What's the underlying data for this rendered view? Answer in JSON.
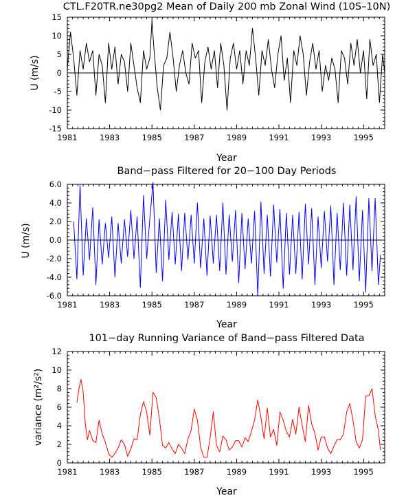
{
  "chart_data": [
    {
      "type": "line",
      "title": "CTL.F20TR.ne30pg2 Mean of Daily 200 mb Zonal Wind (10S–10N)",
      "xlabel": "Year",
      "ylabel": "U (m/s)",
      "xlim": [
        1981,
        1996
      ],
      "ylim": [
        -15,
        15
      ],
      "xticks": [
        "1981",
        "1983",
        "1985",
        "1987",
        "1989",
        "1991",
        "1993",
        "1995"
      ],
      "yticks": [
        "-15",
        "-10",
        "-5",
        "0",
        "5",
        "10",
        "15"
      ],
      "zero_line": true,
      "grid": false,
      "series": [
        {
          "color": "#000000",
          "x": [
            1981.0,
            1981.15,
            1981.3,
            1981.45,
            1981.6,
            1981.75,
            1981.9,
            1982.05,
            1982.2,
            1982.35,
            1982.5,
            1982.65,
            1982.8,
            1982.95,
            1983.1,
            1983.25,
            1983.4,
            1983.55,
            1983.7,
            1983.85,
            1984.0,
            1984.15,
            1984.3,
            1984.45,
            1984.6,
            1984.75,
            1984.9,
            1985.0,
            1985.1,
            1985.25,
            1985.4,
            1985.55,
            1985.7,
            1985.85,
            1986.0,
            1986.15,
            1986.3,
            1986.45,
            1986.6,
            1986.75,
            1986.9,
            1987.05,
            1987.2,
            1987.35,
            1987.5,
            1987.65,
            1987.8,
            1987.95,
            1988.1,
            1988.25,
            1988.4,
            1988.55,
            1988.7,
            1988.85,
            1989.0,
            1989.15,
            1989.3,
            1989.45,
            1989.6,
            1989.75,
            1989.9,
            1990.05,
            1990.2,
            1990.35,
            1990.5,
            1990.65,
            1990.8,
            1990.95,
            1991.1,
            1991.25,
            1991.4,
            1991.55,
            1991.7,
            1991.85,
            1992.0,
            1992.15,
            1992.3,
            1992.45,
            1992.6,
            1992.75,
            1992.9,
            1993.05,
            1993.2,
            1993.35,
            1993.5,
            1993.65,
            1993.8,
            1993.95,
            1994.1,
            1994.25,
            1994.4,
            1994.55,
            1994.7,
            1994.85,
            1995.0,
            1995.15,
            1995.3,
            1995.45,
            1995.6,
            1995.75,
            1995.9,
            1996.0
          ],
          "values": [
            1,
            11,
            4,
            -6,
            6,
            1,
            8,
            3,
            6,
            -6,
            5,
            2,
            -8,
            8,
            1,
            7,
            -3,
            5,
            3,
            -5,
            8,
            2,
            -4,
            -8,
            6,
            1,
            4,
            14,
            6,
            -4,
            -10,
            2,
            4,
            11,
            4,
            -5,
            2,
            6,
            0,
            -3,
            8,
            4,
            6,
            -8,
            3,
            7,
            1,
            6,
            -4,
            8,
            2,
            -10,
            4,
            8,
            1,
            6,
            -3,
            6,
            2,
            12,
            4,
            -6,
            6,
            2,
            9,
            1,
            -4,
            5,
            10,
            -2,
            4,
            -8,
            6,
            2,
            10,
            5,
            -6,
            3,
            8,
            1,
            6,
            -5,
            2,
            -2,
            4,
            1,
            -8,
            6,
            4,
            -3,
            8,
            2,
            9,
            0,
            6,
            -7,
            9,
            2,
            5,
            -8,
            5,
            0
          ]
        }
      ]
    },
    {
      "type": "line",
      "title": "Band−pass Filtered for 20−100 Day Periods",
      "xlabel": "Year",
      "ylabel": "U (m/s)",
      "xlim": [
        1981,
        1996
      ],
      "ylim": [
        -6,
        6
      ],
      "xticks": [
        "1981",
        "1983",
        "1985",
        "1987",
        "1989",
        "1991",
        "1993",
        "1995"
      ],
      "yticks": [
        "-6.0",
        "-4.0",
        "-2.0",
        "0.0",
        "2.0",
        "4.0",
        "6.0"
      ],
      "zero_line": true,
      "grid": false,
      "series": [
        {
          "color": "#0000ff",
          "x": [
            1981.3,
            1981.45,
            1981.6,
            1981.75,
            1981.9,
            1982.05,
            1982.2,
            1982.35,
            1982.5,
            1982.65,
            1982.8,
            1982.95,
            1983.1,
            1983.25,
            1983.4,
            1983.55,
            1983.7,
            1983.85,
            1984.0,
            1984.15,
            1984.3,
            1984.45,
            1984.6,
            1984.75,
            1984.9,
            1985.05,
            1985.2,
            1985.35,
            1985.5,
            1985.65,
            1985.8,
            1985.95,
            1986.1,
            1986.25,
            1986.4,
            1986.55,
            1986.7,
            1986.85,
            1987.0,
            1987.15,
            1987.3,
            1987.45,
            1987.6,
            1987.75,
            1987.9,
            1988.05,
            1988.2,
            1988.35,
            1988.5,
            1988.65,
            1988.8,
            1988.95,
            1989.1,
            1989.25,
            1989.4,
            1989.55,
            1989.7,
            1989.85,
            1990.0,
            1990.15,
            1990.3,
            1990.45,
            1990.6,
            1990.75,
            1990.9,
            1991.05,
            1991.2,
            1991.35,
            1991.5,
            1991.65,
            1991.8,
            1991.95,
            1992.1,
            1992.25,
            1992.4,
            1992.55,
            1992.7,
            1992.85,
            1993.0,
            1993.15,
            1993.3,
            1993.45,
            1993.6,
            1993.75,
            1993.9,
            1994.05,
            1994.2,
            1994.35,
            1994.5,
            1994.65,
            1994.8,
            1994.95,
            1995.1,
            1995.25,
            1995.4,
            1995.55,
            1995.7,
            1995.8
          ],
          "values": [
            2,
            -4.2,
            5.9,
            -3.8,
            2.3,
            -2.1,
            3.5,
            -4.8,
            2.2,
            -2.6,
            1.8,
            -1.9,
            2.5,
            -4.0,
            1.8,
            -2.5,
            2.2,
            -1.8,
            3.2,
            -2.0,
            2.5,
            -5.1,
            4.8,
            -2.0,
            2.3,
            6.2,
            -3.5,
            2.3,
            -4.4,
            4.3,
            -2.1,
            3.0,
            -2.6,
            2.8,
            -3.3,
            2.9,
            -2.1,
            2.7,
            -2.5,
            4.0,
            -3.0,
            2.3,
            -3.8,
            2.6,
            -2.5,
            2.7,
            -3.3,
            4.0,
            -3.7,
            2.7,
            -2.3,
            3.2,
            -4.6,
            2.9,
            -3.1,
            2.3,
            -2.5,
            3.1,
            -6.0,
            4.1,
            -3.6,
            2.7,
            -3.9,
            3.8,
            -2.4,
            3.3,
            -5.2,
            2.9,
            -3.7,
            2.7,
            -3.6,
            3.0,
            -4.2,
            3.9,
            -2.6,
            3.4,
            -4.8,
            2.5,
            -3.0,
            3.1,
            -2.3,
            3.7,
            -4.8,
            2.9,
            -3.2,
            4.0,
            -3.8,
            3.8,
            -3.2,
            4.7,
            -4.4,
            3.2,
            -5.6,
            4.5,
            -3.3,
            4.5,
            -4.8,
            -1.6
          ]
        }
      ]
    },
    {
      "type": "line",
      "title": "101−day Running Variance of Band−pass Filtered Data",
      "xlabel": "Year",
      "ylabel": "variance (m²/s²)",
      "xlim": [
        1981,
        1996
      ],
      "ylim": [
        0,
        12
      ],
      "xticks": [
        "1981",
        "1983",
        "1985",
        "1987",
        "1989",
        "1991",
        "1993",
        "1995"
      ],
      "yticks": [
        "0",
        "2",
        "4",
        "6",
        "8",
        "10",
        "12"
      ],
      "zero_line": false,
      "grid": false,
      "series": [
        {
          "color": "#ff0000",
          "x": [
            1981.45,
            1981.55,
            1981.65,
            1981.75,
            1981.85,
            1981.95,
            1982.05,
            1982.2,
            1982.35,
            1982.5,
            1982.65,
            1982.8,
            1982.95,
            1983.1,
            1983.25,
            1983.4,
            1983.55,
            1983.7,
            1983.85,
            1984.0,
            1984.15,
            1984.3,
            1984.45,
            1984.6,
            1984.75,
            1984.9,
            1985.05,
            1985.2,
            1985.35,
            1985.5,
            1985.65,
            1985.8,
            1985.95,
            1986.1,
            1986.25,
            1986.4,
            1986.55,
            1986.7,
            1986.85,
            1987.0,
            1987.15,
            1987.3,
            1987.45,
            1987.6,
            1987.75,
            1987.9,
            1988.05,
            1988.2,
            1988.35,
            1988.5,
            1988.65,
            1988.8,
            1988.95,
            1989.1,
            1989.25,
            1989.4,
            1989.55,
            1989.7,
            1989.85,
            1990.0,
            1990.15,
            1990.3,
            1990.45,
            1990.6,
            1990.75,
            1990.9,
            1991.05,
            1991.2,
            1991.35,
            1991.5,
            1991.65,
            1991.8,
            1991.95,
            1992.1,
            1992.25,
            1992.4,
            1992.55,
            1992.7,
            1992.85,
            1993.0,
            1993.15,
            1993.3,
            1993.45,
            1993.6,
            1993.75,
            1993.9,
            1994.05,
            1994.2,
            1994.35,
            1994.5,
            1994.65,
            1994.8,
            1994.95,
            1995.1,
            1995.25,
            1995.4,
            1995.55,
            1995.7,
            1995.8
          ],
          "values": [
            6.5,
            8.0,
            9.0,
            7.6,
            4.2,
            2.5,
            3.5,
            2.4,
            2.2,
            4.6,
            3.1,
            2.2,
            1.0,
            0.6,
            1.0,
            1.6,
            2.5,
            2.0,
            0.7,
            1.5,
            2.6,
            2.5,
            5.2,
            6.6,
            5.5,
            3.0,
            7.6,
            7.0,
            4.8,
            1.9,
            1.6,
            2.2,
            1.5,
            1.0,
            2.0,
            1.6,
            1.0,
            2.6,
            3.5,
            5.8,
            4.6,
            1.7,
            0.6,
            0.6,
            2.7,
            5.5,
            1.9,
            1.2,
            2.9,
            2.5,
            1.4,
            1.7,
            2.4,
            2.4,
            1.7,
            2.7,
            2.3,
            3.4,
            4.6,
            6.8,
            4.9,
            2.6,
            5.9,
            2.8,
            3.6,
            1.9,
            5.5,
            4.6,
            3.4,
            2.8,
            4.7,
            3.1,
            6.0,
            4.0,
            2.3,
            6.2,
            4.2,
            3.2,
            1.4,
            2.8,
            2.8,
            1.6,
            1.0,
            1.8,
            2.5,
            2.5,
            3.1,
            5.5,
            6.4,
            4.6,
            2.3,
            1.6,
            2.5,
            7.2,
            7.2,
            8.0,
            5.1,
            3.5,
            1.4
          ]
        }
      ]
    }
  ]
}
